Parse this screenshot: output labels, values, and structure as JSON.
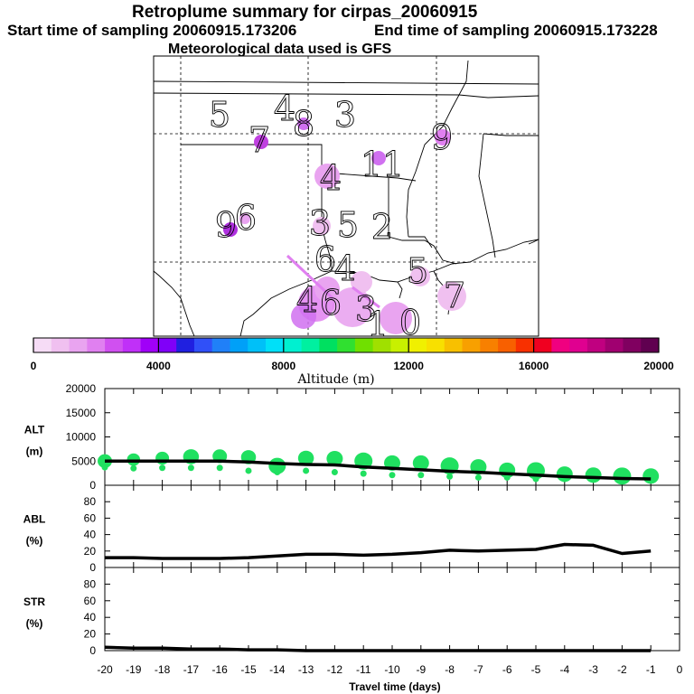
{
  "title": "Retroplume summary for cirpas_20060915",
  "start_label": "Start time of sampling 20060915.173206",
  "end_label": "End time of sampling 20060915.173228",
  "met_label": "Meteorological data used is GFS",
  "colors": {
    "colorbar": [
      "#f6dcf6",
      "#f0c0f0",
      "#e9a4f0",
      "#e080f0",
      "#d050f0",
      "#c030f8",
      "#a000f8",
      "#8000f8",
      "#2020e0",
      "#3050f8",
      "#2080f8",
      "#00a0f8",
      "#00c0f8",
      "#00e0f8",
      "#00f0d0",
      "#00f0a0",
      "#00e060",
      "#30e030",
      "#70e000",
      "#a0e000",
      "#c8f000",
      "#f0f000",
      "#f8e000",
      "#f8c000",
      "#f8a000",
      "#f88000",
      "#f86000",
      "#f83000",
      "#f00020",
      "#f00080",
      "#e00090",
      "#c00080",
      "#a00070",
      "#800060",
      "#600050"
    ],
    "plume": "#e080f0",
    "green": "#20e060",
    "line": "#000000"
  },
  "colorbar": {
    "tick_labels": [
      "0",
      "4000",
      "8000",
      "12000",
      "16000",
      "20000"
    ],
    "xlabel": "Altitude (m)"
  },
  "map_numbers": [
    "5",
    "4",
    "8",
    "3",
    "7",
    "9",
    "11",
    "4",
    "3",
    "5",
    "2",
    "9",
    "6",
    "6",
    "4",
    "5",
    "7",
    "4",
    "6",
    "3",
    "1",
    "0"
  ],
  "chart_data": [
    {
      "type": "scatter",
      "panel": "ALT",
      "ylabel": "ALT\n(m)",
      "x": [
        -20,
        -19,
        -18,
        -17,
        -16,
        -15,
        -14,
        -13,
        -12,
        -11,
        -10,
        -9,
        -8,
        -7,
        -6,
        -5,
        -4,
        -3,
        -2,
        -1
      ],
      "series": [
        {
          "name": "mean altitude",
          "values": [
            5000,
            5000,
            5000,
            5000,
            5000,
            4800,
            4500,
            4300,
            4200,
            3800,
            3500,
            3200,
            2900,
            2700,
            2400,
            2100,
            1800,
            1600,
            1400,
            1300
          ]
        },
        {
          "name": "plume upper",
          "values": [
            5000,
            5300,
            5600,
            5900,
            6000,
            5800,
            4000,
            5600,
            5500,
            5000,
            4600,
            4600,
            4000,
            3800,
            3100,
            3000,
            2300,
            2100,
            1900,
            1900
          ]
        },
        {
          "name": "plume lower",
          "values": [
            3700,
            3500,
            3600,
            3600,
            3600,
            3000,
            2700,
            3000,
            2700,
            2400,
            2100,
            2100,
            1800,
            1600,
            1600,
            1300,
            1300,
            1200,
            1100,
            1100
          ]
        }
      ],
      "yticks": [
        "0",
        "5000",
        "10000",
        "15000",
        "20000"
      ],
      "ylim": [
        0,
        20000
      ],
      "xlim": [
        -20,
        0
      ]
    },
    {
      "type": "line",
      "panel": "ABL",
      "ylabel": "ABL\n(%)",
      "x": [
        -20,
        -19,
        -18,
        -17,
        -16,
        -15,
        -14,
        -13,
        -12,
        -11,
        -10,
        -9,
        -8,
        -7,
        -6,
        -5,
        -4,
        -3,
        -2,
        -1
      ],
      "series": [
        {
          "name": "ABL fraction",
          "values": [
            12,
            12,
            11,
            11,
            11,
            12,
            14,
            16,
            16,
            15,
            16,
            18,
            21,
            20,
            21,
            22,
            28,
            27,
            17,
            20
          ]
        }
      ],
      "yticks": [
        "0",
        "20",
        "40",
        "60",
        "80"
      ],
      "ylim": [
        0,
        100
      ],
      "xlim": [
        -20,
        0
      ]
    },
    {
      "type": "line",
      "panel": "STR",
      "ylabel": "STR\n(%)",
      "x": [
        -20,
        -19,
        -18,
        -17,
        -16,
        -15,
        -14,
        -13,
        -12,
        -11,
        -10,
        -9,
        -8,
        -7,
        -6,
        -5,
        -4,
        -3,
        -2,
        -1
      ],
      "series": [
        {
          "name": "stratospheric fraction",
          "values": [
            4,
            3,
            3,
            2,
            2,
            1,
            1,
            0,
            0,
            0,
            0,
            0,
            0,
            0,
            0,
            0,
            0,
            0,
            0,
            0
          ]
        }
      ],
      "yticks": [
        "0",
        "20",
        "40",
        "60",
        "80"
      ],
      "ylim": [
        0,
        100
      ],
      "xlim": [
        -20,
        0
      ],
      "xticks": [
        "-20",
        "-19",
        "-18",
        "-17",
        "-16",
        "-15",
        "-14",
        "-13",
        "-12",
        "-11",
        "-10",
        "-9",
        "-8",
        "-7",
        "-6",
        "-5",
        "-4",
        "-3",
        "-2",
        "-1",
        "0"
      ],
      "xlabel": "Travel time (days)"
    }
  ]
}
